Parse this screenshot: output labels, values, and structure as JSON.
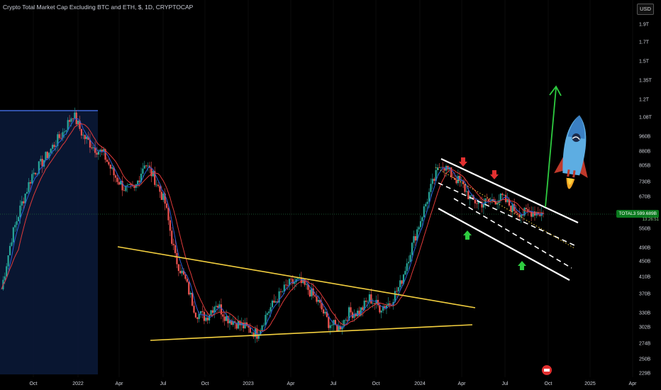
{
  "header": {
    "title": "Crypto Total Market Cap Excluding BTC and ETH, $, 1D, CRYPTOCAP",
    "currency": "USD"
  },
  "price_tag": {
    "symbol": "TOTAL3",
    "value": "599.689B",
    "countdown": "13:26:51"
  },
  "colors": {
    "background": "#000000",
    "candle_up": "#26a69a",
    "candle_down": "#ef5350",
    "ma_red": "#e03a3a",
    "ma_blue": "#2a5bd7",
    "triangle": "#f4d03f",
    "channel": "#ffffff",
    "highlight_box": "#0b1a3a",
    "highlight_line": "#4d7bff",
    "arrow_green": "#2ecc40",
    "arrow_red": "#e23030"
  },
  "icons": {
    "rocket": "rocket-icon",
    "logo": "tradingview-logo-icon"
  },
  "chart_data": {
    "type": "line",
    "title": "Crypto Total Market Cap Excluding BTC and ETH, $, 1D, CRYPTOCAP",
    "y_scale": "log",
    "y_ticks": [
      "1.9T",
      "1.7T",
      "1.5T",
      "1.35T",
      "1.2T",
      "1.08T",
      "960B",
      "880B",
      "805B",
      "730B",
      "670B",
      "550B",
      "490B",
      "450B",
      "410B",
      "370B",
      "330B",
      "302B",
      "274B",
      "250B",
      "229B"
    ],
    "x_ticks": [
      "Oct",
      "2022",
      "Apr",
      "Jul",
      "Oct",
      "2023",
      "Apr",
      "Jul",
      "Oct",
      "2024",
      "Apr",
      "Jul",
      "Oct",
      "2025",
      "Apr"
    ],
    "series": [
      {
        "values_billion_usd": [
          380,
          520,
          640,
          760,
          820,
          900,
          980,
          1100,
          960,
          900,
          860,
          760,
          700,
          690,
          820,
          740,
          640,
          460,
          400,
          330,
          320,
          350,
          320,
          310,
          300,
          290,
          330,
          360,
          390,
          400,
          380,
          350,
          310,
          300,
          330,
          330,
          360,
          340,
          350,
          390,
          480,
          580,
          700,
          820,
          760,
          720,
          650,
          640,
          650,
          660,
          620,
          600,
          610,
          600
        ]
      }
    ],
    "annotations": {
      "last_value": "599.689B",
      "drawings": [
        "highlight-rectangle",
        "triangle-upper-trendline",
        "triangle-lower-trendline",
        "descending-channel",
        "projection-arrow",
        "rocket-icon"
      ]
    }
  }
}
